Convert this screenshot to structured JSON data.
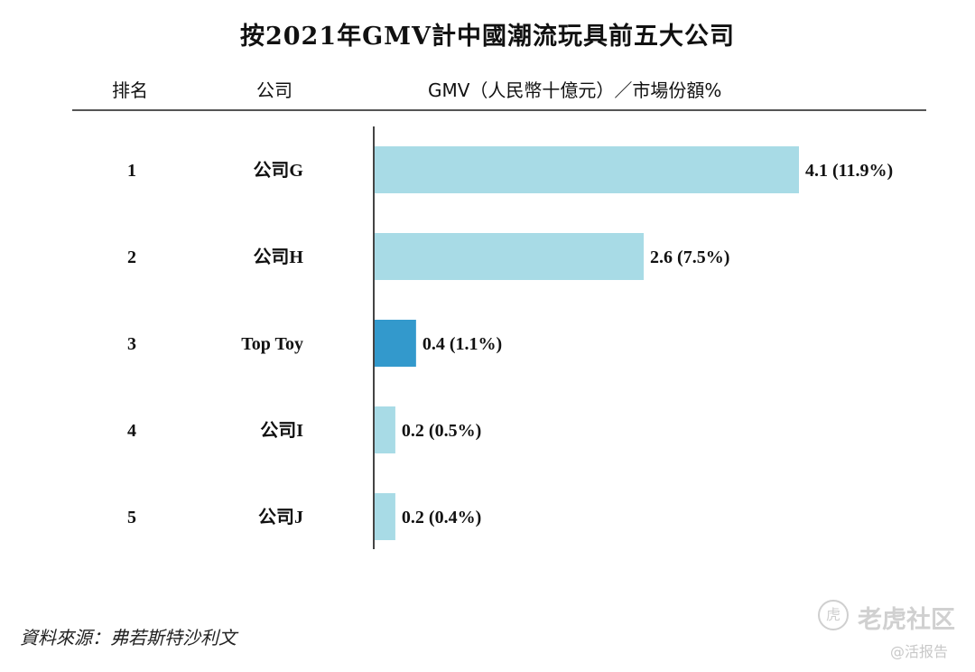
{
  "title": "按2021年GMV計中國潮流玩具前五大公司",
  "headers": {
    "rank": "排名",
    "company": "公司",
    "gmv": "GMV（人民幣十億元）／市場份額%"
  },
  "chart_data": {
    "type": "bar",
    "orientation": "horizontal",
    "rows": [
      {
        "rank": "1",
        "company": "公司G",
        "value": 4.1,
        "label": "4.1 (11.9%)",
        "color": "#a8dbe6"
      },
      {
        "rank": "2",
        "company": "公司H",
        "value": 2.6,
        "label": "2.6 (7.5%)",
        "color": "#a8dbe6"
      },
      {
        "rank": "3",
        "company": "Top Toy",
        "value": 0.4,
        "label": "0.4 (1.1%)",
        "color": "#3399cc"
      },
      {
        "rank": "4",
        "company": "公司I",
        "value": 0.2,
        "label": "0.2 (0.5%)",
        "color": "#a8dbe6"
      },
      {
        "rank": "5",
        "company": "公司J",
        "value": 0.2,
        "label": "0.2 (0.4%)",
        "color": "#a8dbe6"
      }
    ],
    "highlight_color": "#3399cc",
    "base_color": "#a8dbe6"
  },
  "source": "資料來源：弗若斯特沙利文",
  "watermark": {
    "icon": "tiger-logo-icon",
    "logo_glyph": "虎",
    "brand": "老虎社区",
    "sub": "@活报告"
  }
}
